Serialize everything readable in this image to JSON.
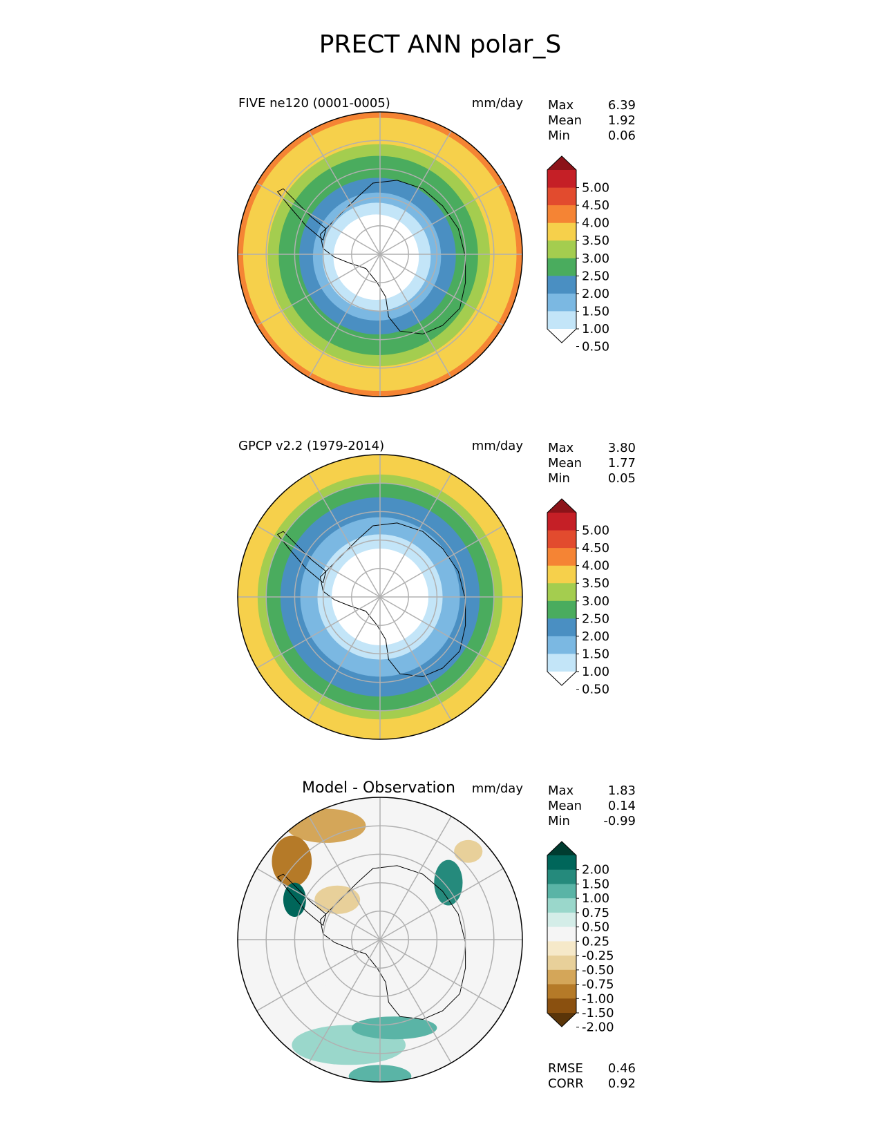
{
  "chart_data": {
    "title": "PRECT ANN polar_S",
    "panels": [
      {
        "name": "model",
        "type": "heatmap",
        "left_title": "FIVE ne120 (0001-0005)",
        "center_title": "",
        "units": "mm/day",
        "stats": [
          {
            "label": "Max",
            "value": "6.39"
          },
          {
            "label": "Mean",
            "value": "1.92"
          },
          {
            "label": "Min",
            "value": "0.06"
          }
        ],
        "colorbar": {
          "levels": [
            "5.00",
            "4.50",
            "4.00",
            "3.50",
            "3.00",
            "2.50",
            "2.00",
            "1.50",
            "1.00",
            "0.50"
          ],
          "colors": [
            "#ffffff",
            "#c3e5f8",
            "#7bb8e2",
            "#4a8fc2",
            "#4aac5e",
            "#a4cd4f",
            "#f6d04b",
            "#f58434",
            "#e24b2e",
            "#c51f26",
            "#8c1319"
          ]
        },
        "rings": [
          {
            "r": 1.0,
            "color": "#f58434"
          },
          {
            "r": 0.96,
            "color": "#f6d04b"
          },
          {
            "r": 0.78,
            "color": "#a4cd4f"
          },
          {
            "r": 0.7,
            "color": "#4aac5e"
          },
          {
            "r": 0.55,
            "color": "#4a8fc2"
          },
          {
            "r": 0.45,
            "color": "#7bb8e2"
          },
          {
            "r": 0.38,
            "color": "#c3e5f8"
          },
          {
            "r": 0.3,
            "color": "#ffffff"
          }
        ]
      },
      {
        "name": "obs",
        "type": "heatmap",
        "left_title": "GPCP v2.2 (1979-2014)",
        "center_title": "",
        "units": "mm/day",
        "stats": [
          {
            "label": "Max",
            "value": "3.80"
          },
          {
            "label": "Mean",
            "value": "1.77"
          },
          {
            "label": "Min",
            "value": "0.05"
          }
        ],
        "colorbar": {
          "levels": [
            "5.00",
            "4.50",
            "4.00",
            "3.50",
            "3.00",
            "2.50",
            "2.00",
            "1.50",
            "1.00",
            "0.50"
          ],
          "colors": [
            "#ffffff",
            "#c3e5f8",
            "#7bb8e2",
            "#4a8fc2",
            "#4aac5e",
            "#a4cd4f",
            "#f6d04b",
            "#f58434",
            "#e24b2e",
            "#c51f26",
            "#8c1319"
          ]
        },
        "rings": [
          {
            "r": 1.0,
            "color": "#f6d04b"
          },
          {
            "r": 0.86,
            "color": "#a4cd4f"
          },
          {
            "r": 0.8,
            "color": "#4aac5e"
          },
          {
            "r": 0.7,
            "color": "#4a8fc2"
          },
          {
            "r": 0.56,
            "color": "#7bb8e2"
          },
          {
            "r": 0.44,
            "color": "#c3e5f8"
          },
          {
            "r": 0.34,
            "color": "#ffffff"
          }
        ]
      },
      {
        "name": "diff",
        "type": "heatmap",
        "left_title": "",
        "center_title": "Model - Observation",
        "units": "mm/day",
        "stats": [
          {
            "label": "Max",
            "value": "1.83"
          },
          {
            "label": "Mean",
            "value": "0.14"
          },
          {
            "label": "Min",
            "value": "-0.99"
          }
        ],
        "extra_stats": [
          {
            "label": "RMSE",
            "value": "0.46"
          },
          {
            "label": "CORR",
            "value": "0.92"
          }
        ],
        "colorbar": {
          "levels": [
            "2.00",
            "1.50",
            "1.00",
            "0.75",
            "0.50",
            "0.25",
            "-0.25",
            "-0.50",
            "-0.75",
            "-1.00",
            "-1.50",
            "-2.00"
          ],
          "colors": [
            "#5a3509",
            "#8a500f",
            "#b57a28",
            "#d4a659",
            "#e8d09a",
            "#f6e9c9",
            "#f5f5f5",
            "#d4ede8",
            "#9ad7cb",
            "#5ab4a6",
            "#258a7c",
            "#00665a",
            "#003c30"
          ]
        },
        "rings": [
          {
            "r": 1.0,
            "color": "#f5f5f5"
          },
          {
            "r": 0.5,
            "color": "#f5f5f5"
          }
        ]
      }
    ]
  }
}
